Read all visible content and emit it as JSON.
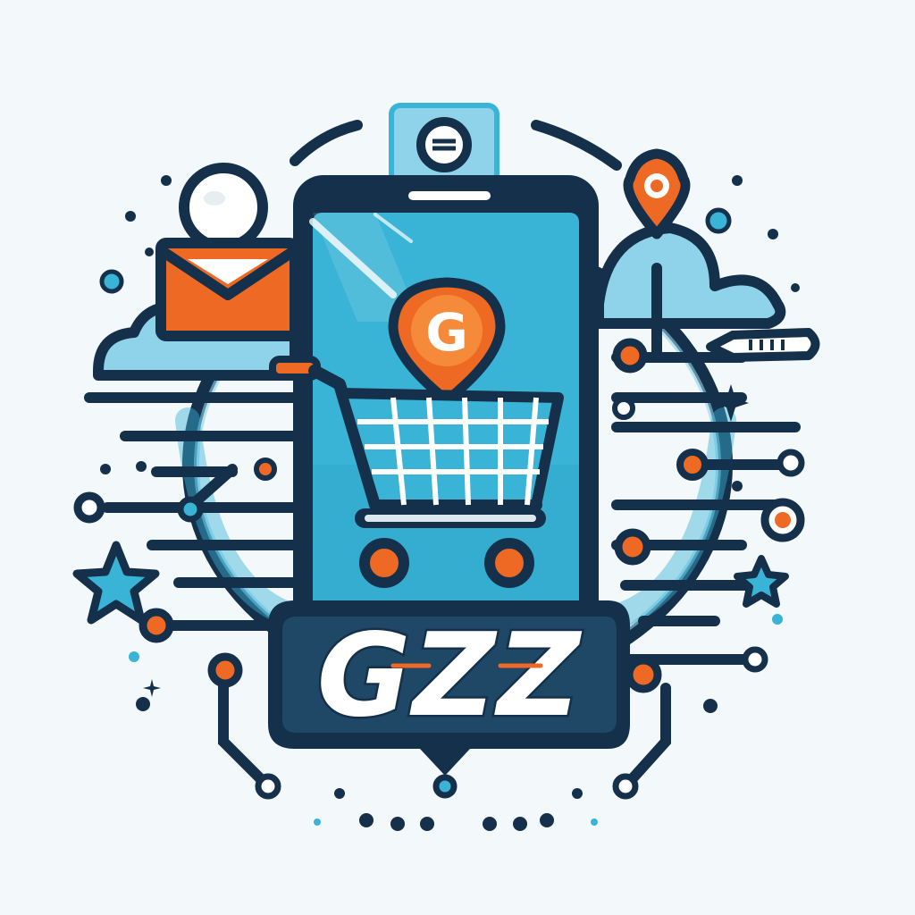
{
  "logo": {
    "wordmark": "GZZ",
    "badge_letter": "G"
  },
  "icons": [
    "smartphone-icon",
    "shopping-cart-icon",
    "location-pin-icon",
    "user-avatar-icon",
    "envelope-icon",
    "cloud-icon",
    "star-icon",
    "sparkle-icon",
    "circuit-lines"
  ],
  "colors": {
    "navy": "#14304a",
    "sky": "#39b4d6",
    "sky_light": "#8fd3ea",
    "orange": "#ee6a24",
    "white": "#ffffff",
    "background": "#f3f8fa"
  }
}
